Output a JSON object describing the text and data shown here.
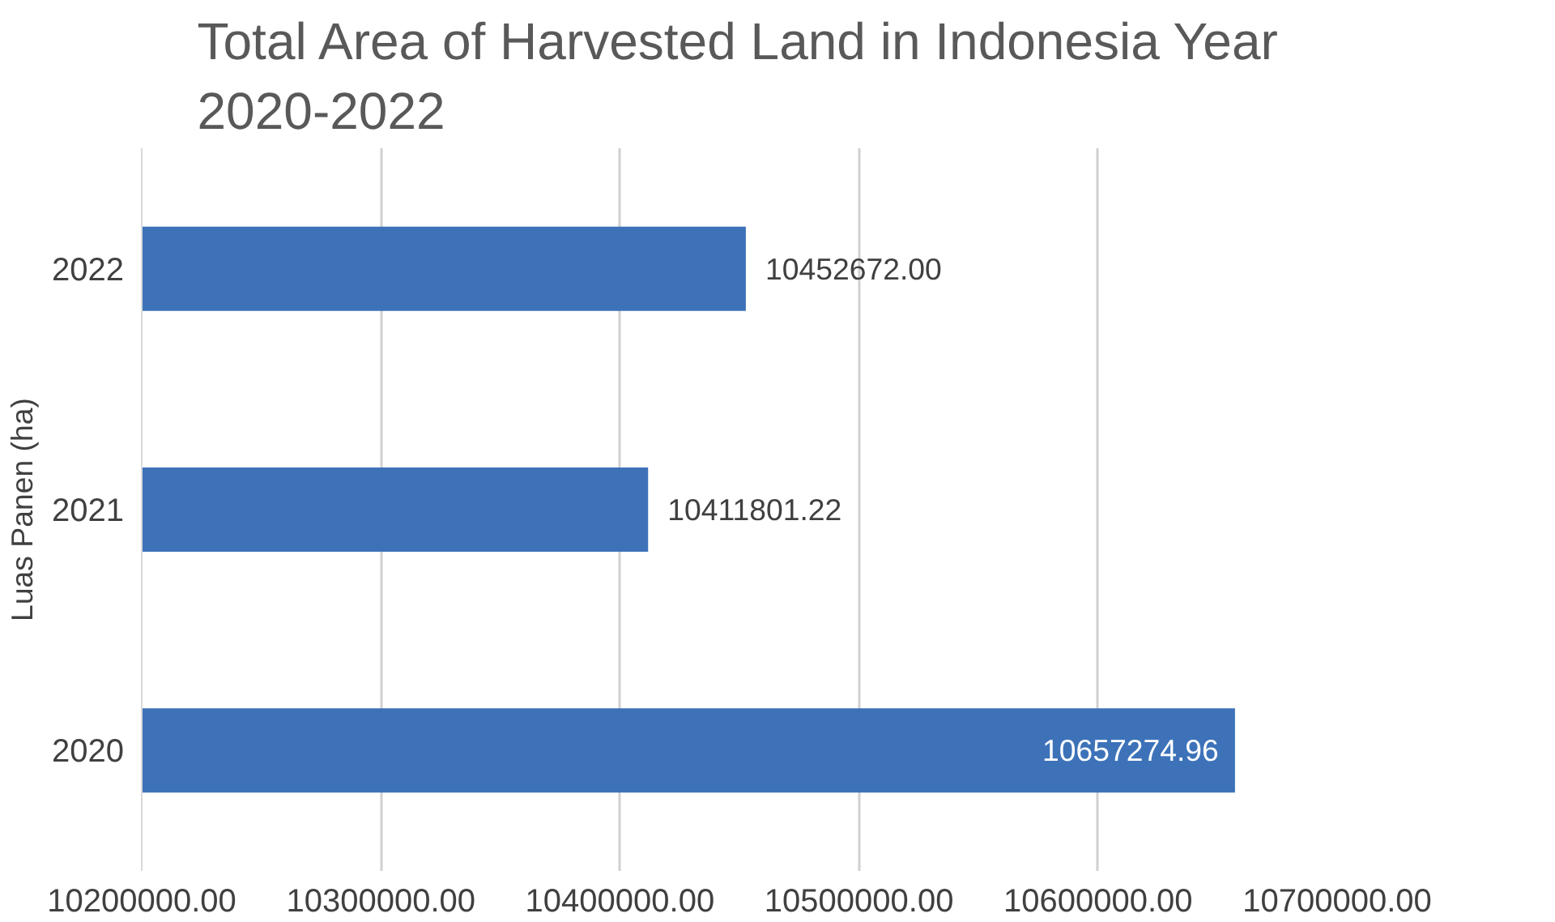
{
  "chart_data": {
    "type": "bar",
    "orientation": "horizontal",
    "title": "Total Area of Harvested Land in Indonesia Year 2020-2022",
    "ylabel": "Luas Panen (ha)",
    "categories": [
      "2022",
      "2021",
      "2020"
    ],
    "values": [
      10452672.0,
      10411801.22,
      10657274.96
    ],
    "value_labels": [
      "10452672.00",
      "10411801.22",
      "10657274.96"
    ],
    "color": "#3d72b9",
    "xlim": [
      10200000,
      10700000
    ],
    "xticks": [
      {
        "value": 10200000,
        "label": "10200000.00"
      },
      {
        "value": 10300000,
        "label": "10300000.00"
      },
      {
        "value": 10400000,
        "label": "10400000.00"
      },
      {
        "value": 10500000,
        "label": "10500000.00"
      },
      {
        "value": 10600000,
        "label": "10600000.00"
      },
      {
        "value": 10700000,
        "label": "10700000.00"
      }
    ],
    "grid": "x"
  }
}
